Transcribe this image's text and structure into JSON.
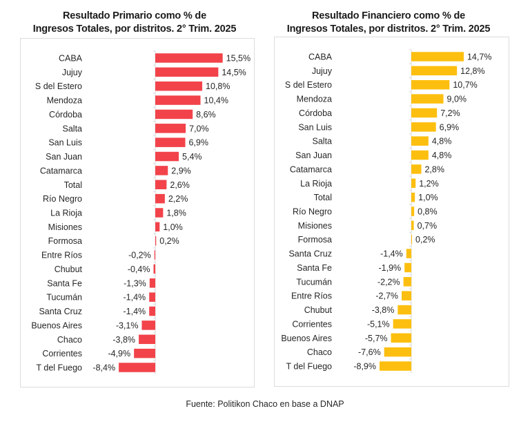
{
  "chart_data": [
    {
      "type": "bar",
      "orientation": "horizontal",
      "title": "Resultado Primario como % de Ingresos Totales, por distritos. 2° Trim. 2025",
      "title_lines": [
        "Resultado Primario como % de",
        "Ingresos Totales, por distritos. 2° Trim. 2025"
      ],
      "xlabel": "",
      "ylabel": "",
      "color": "#f2434a",
      "grid": false,
      "legend": "none",
      "xlim": [
        -8.4,
        15.5
      ],
      "categories": [
        "CABA",
        "Jujuy",
        "S del Estero",
        "Mendoza",
        "Córdoba",
        "Salta",
        "San Luis",
        "San Juan",
        "Catamarca",
        "Total",
        "Río Negro",
        "La Rioja",
        "Misiones",
        "Formosa",
        "Entre Ríos",
        "Chubut",
        "Santa Fe",
        "Tucumán",
        "Santa Cruz",
        "Buenos Aires",
        "Chaco",
        "Corrientes",
        "T del Fuego"
      ],
      "values": [
        15.5,
        14.5,
        10.8,
        10.4,
        8.6,
        7.0,
        6.9,
        5.4,
        2.9,
        2.6,
        2.2,
        1.8,
        1.0,
        0.2,
        -0.2,
        -0.4,
        -1.3,
        -1.4,
        -1.4,
        -3.1,
        -3.8,
        -4.9,
        -8.4
      ],
      "value_labels": [
        "15,5%",
        "14,5%",
        "10,8%",
        "10,4%",
        "8,6%",
        "7,0%",
        "6,9%",
        "5,4%",
        "2,9%",
        "2,6%",
        "2,2%",
        "1,8%",
        "1,0%",
        "0,2%",
        "-0,2%",
        "-0,4%",
        "-1,3%",
        "-1,4%",
        "-1,4%",
        "-3,1%",
        "-3,8%",
        "-4,9%",
        "-8,4%"
      ]
    },
    {
      "type": "bar",
      "orientation": "horizontal",
      "title": "Resultado Financiero como % de Ingresos Totales, por distritos. 2° Trim. 2025",
      "title_lines": [
        "Resultado Financiero como % de",
        "Ingresos Totales, por distritos. 2° Trim. 2025"
      ],
      "xlabel": "",
      "ylabel": "",
      "color": "#fdbf0f",
      "grid": false,
      "legend": "none",
      "xlim": [
        -8.9,
        14.7
      ],
      "categories": [
        "CABA",
        "Jujuy",
        "S del Estero",
        "Mendoza",
        "Córdoba",
        "San Luis",
        "Salta",
        "San Juan",
        "Catamarca",
        "La Rioja",
        "Total",
        "Río Negro",
        "Misiones",
        "Formosa",
        "Santa Cruz",
        "Santa Fe",
        "Tucumán",
        "Entre Ríos",
        "Chubut",
        "Corrientes",
        "Buenos Aires",
        "Chaco",
        "T del Fuego"
      ],
      "values": [
        14.7,
        12.8,
        10.7,
        9.0,
        7.2,
        6.9,
        4.8,
        4.8,
        2.8,
        1.2,
        1.0,
        0.8,
        0.7,
        0.2,
        -1.4,
        -1.9,
        -2.2,
        -2.7,
        -3.8,
        -5.1,
        -5.7,
        -7.6,
        -8.9
      ],
      "value_labels": [
        "14,7%",
        "12,8%",
        "10,7%",
        "9,0%",
        "7,2%",
        "6,9%",
        "4,8%",
        "4,8%",
        "2,8%",
        "1,2%",
        "1,0%",
        "0,8%",
        "0,7%",
        "0,2%",
        "-1,4%",
        "-1,9%",
        "-2,2%",
        "-2,7%",
        "-3,8%",
        "-5,1%",
        "-5,7%",
        "-7,6%",
        "-8,9%"
      ]
    }
  ],
  "source": "Fuente: Politikon Chaco en base a DNAP",
  "colors": {
    "primary_bar": "#f2434a",
    "financial_bar": "#fdbf0f",
    "panel_border": "#dcdcdc",
    "axis": "#d9d9d9"
  }
}
